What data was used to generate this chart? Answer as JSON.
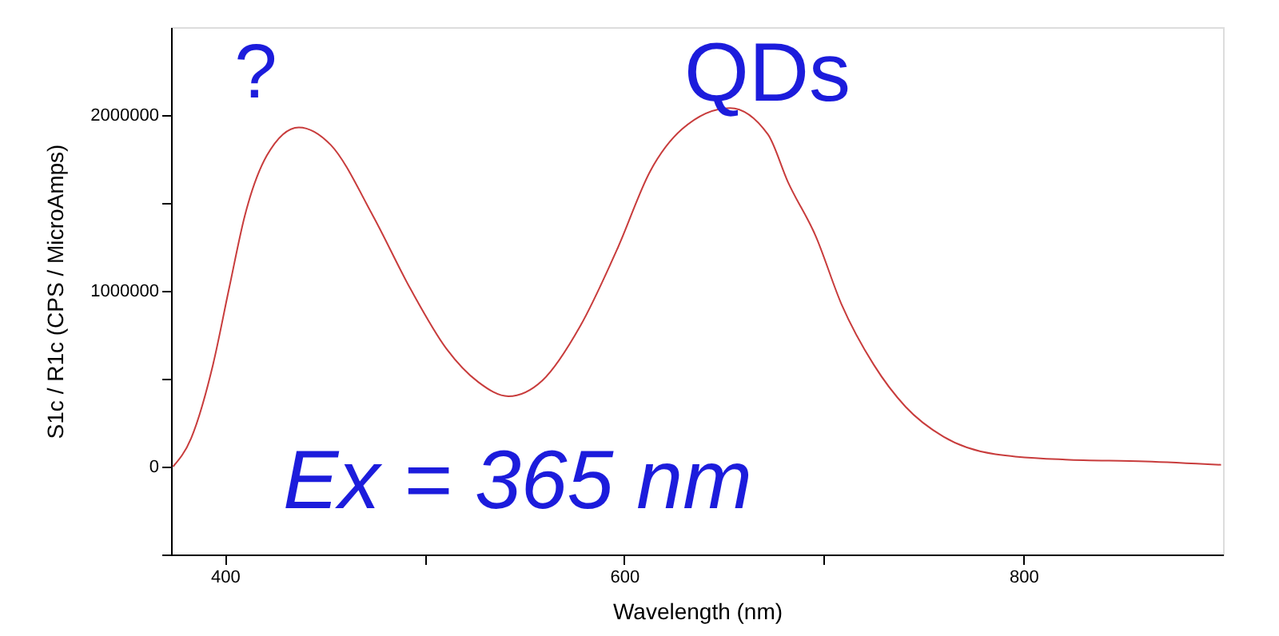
{
  "chart_data": {
    "type": "line",
    "xlabel": "Wavelength (nm)",
    "ylabel": "S1c / R1c (CPS / MicroAmps)",
    "x": [
      374,
      383,
      394,
      402,
      410,
      421,
      437,
      453,
      474,
      493,
      511,
      527,
      542,
      559,
      578,
      597,
      613,
      629,
      653,
      672,
      682,
      696,
      709,
      725,
      741,
      760,
      786,
      821,
      861,
      899
    ],
    "series": [
      {
        "color": "#c83c3c",
        "values": [
          0,
          160000,
          580000,
          1010000,
          1430000,
          1770000,
          1930000,
          1830000,
          1430000,
          1010000,
          670000,
          480000,
          400000,
          490000,
          800000,
          1250000,
          1680000,
          1920000,
          2040000,
          1890000,
          1620000,
          1310000,
          920000,
          580000,
          340000,
          170000,
          70000,
          40000,
          30000,
          10000
        ]
      }
    ],
    "xlim": [
      373,
      900
    ],
    "xticks": [
      400,
      {
        "value": 500,
        "label": null
      },
      600,
      {
        "value": 700,
        "label": null
      },
      800
    ],
    "ylim": [
      -500000,
      2500000
    ],
    "yticks": [
      {
        "value": -500000,
        "label": null
      },
      0,
      {
        "value": 500000,
        "label": null
      },
      1000000,
      {
        "value": 1500000,
        "label": null
      },
      2000000
    ],
    "grid": false,
    "marker": "none",
    "line_style": "solid",
    "annotations": [
      "?",
      "QDs",
      "Ex = 365 nm"
    ]
  }
}
